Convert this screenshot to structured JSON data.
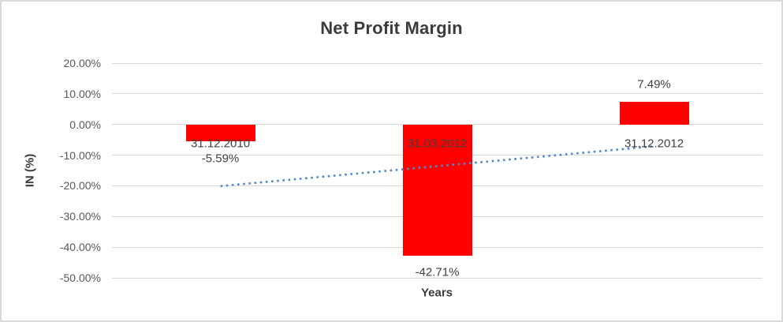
{
  "chart_data": {
    "type": "bar",
    "title": "Net Profit Margin",
    "xlabel": "Years",
    "ylabel": "IN (%)",
    "categories": [
      "31.12.2010",
      "31.03.2012",
      "31.12.2012"
    ],
    "values": [
      -5.59,
      -42.71,
      7.49
    ],
    "data_labels": [
      "-5.59%",
      "-42.71%",
      "7.49%"
    ],
    "bar_color": "#ff0000",
    "ylim": [
      -50,
      20
    ],
    "y_ticks": [
      {
        "value": 20,
        "label": "20.00%"
      },
      {
        "value": 10,
        "label": "10.00%"
      },
      {
        "value": 0,
        "label": "0.00%"
      },
      {
        "value": -10,
        "label": "-10.00%"
      },
      {
        "value": -20,
        "label": "-20.00%"
      },
      {
        "value": -30,
        "label": "-30.00%"
      },
      {
        "value": -40,
        "label": "-40.00%"
      },
      {
        "value": -50,
        "label": "-50.00%"
      }
    ],
    "grid": true,
    "legend": false,
    "trendline": {
      "type": "linear",
      "line_style": "dotted",
      "color": "#4e8ac9",
      "start": {
        "x_index": 0,
        "value": -20.1
      },
      "end": {
        "x_index": 2,
        "value": -7.1
      }
    }
  }
}
